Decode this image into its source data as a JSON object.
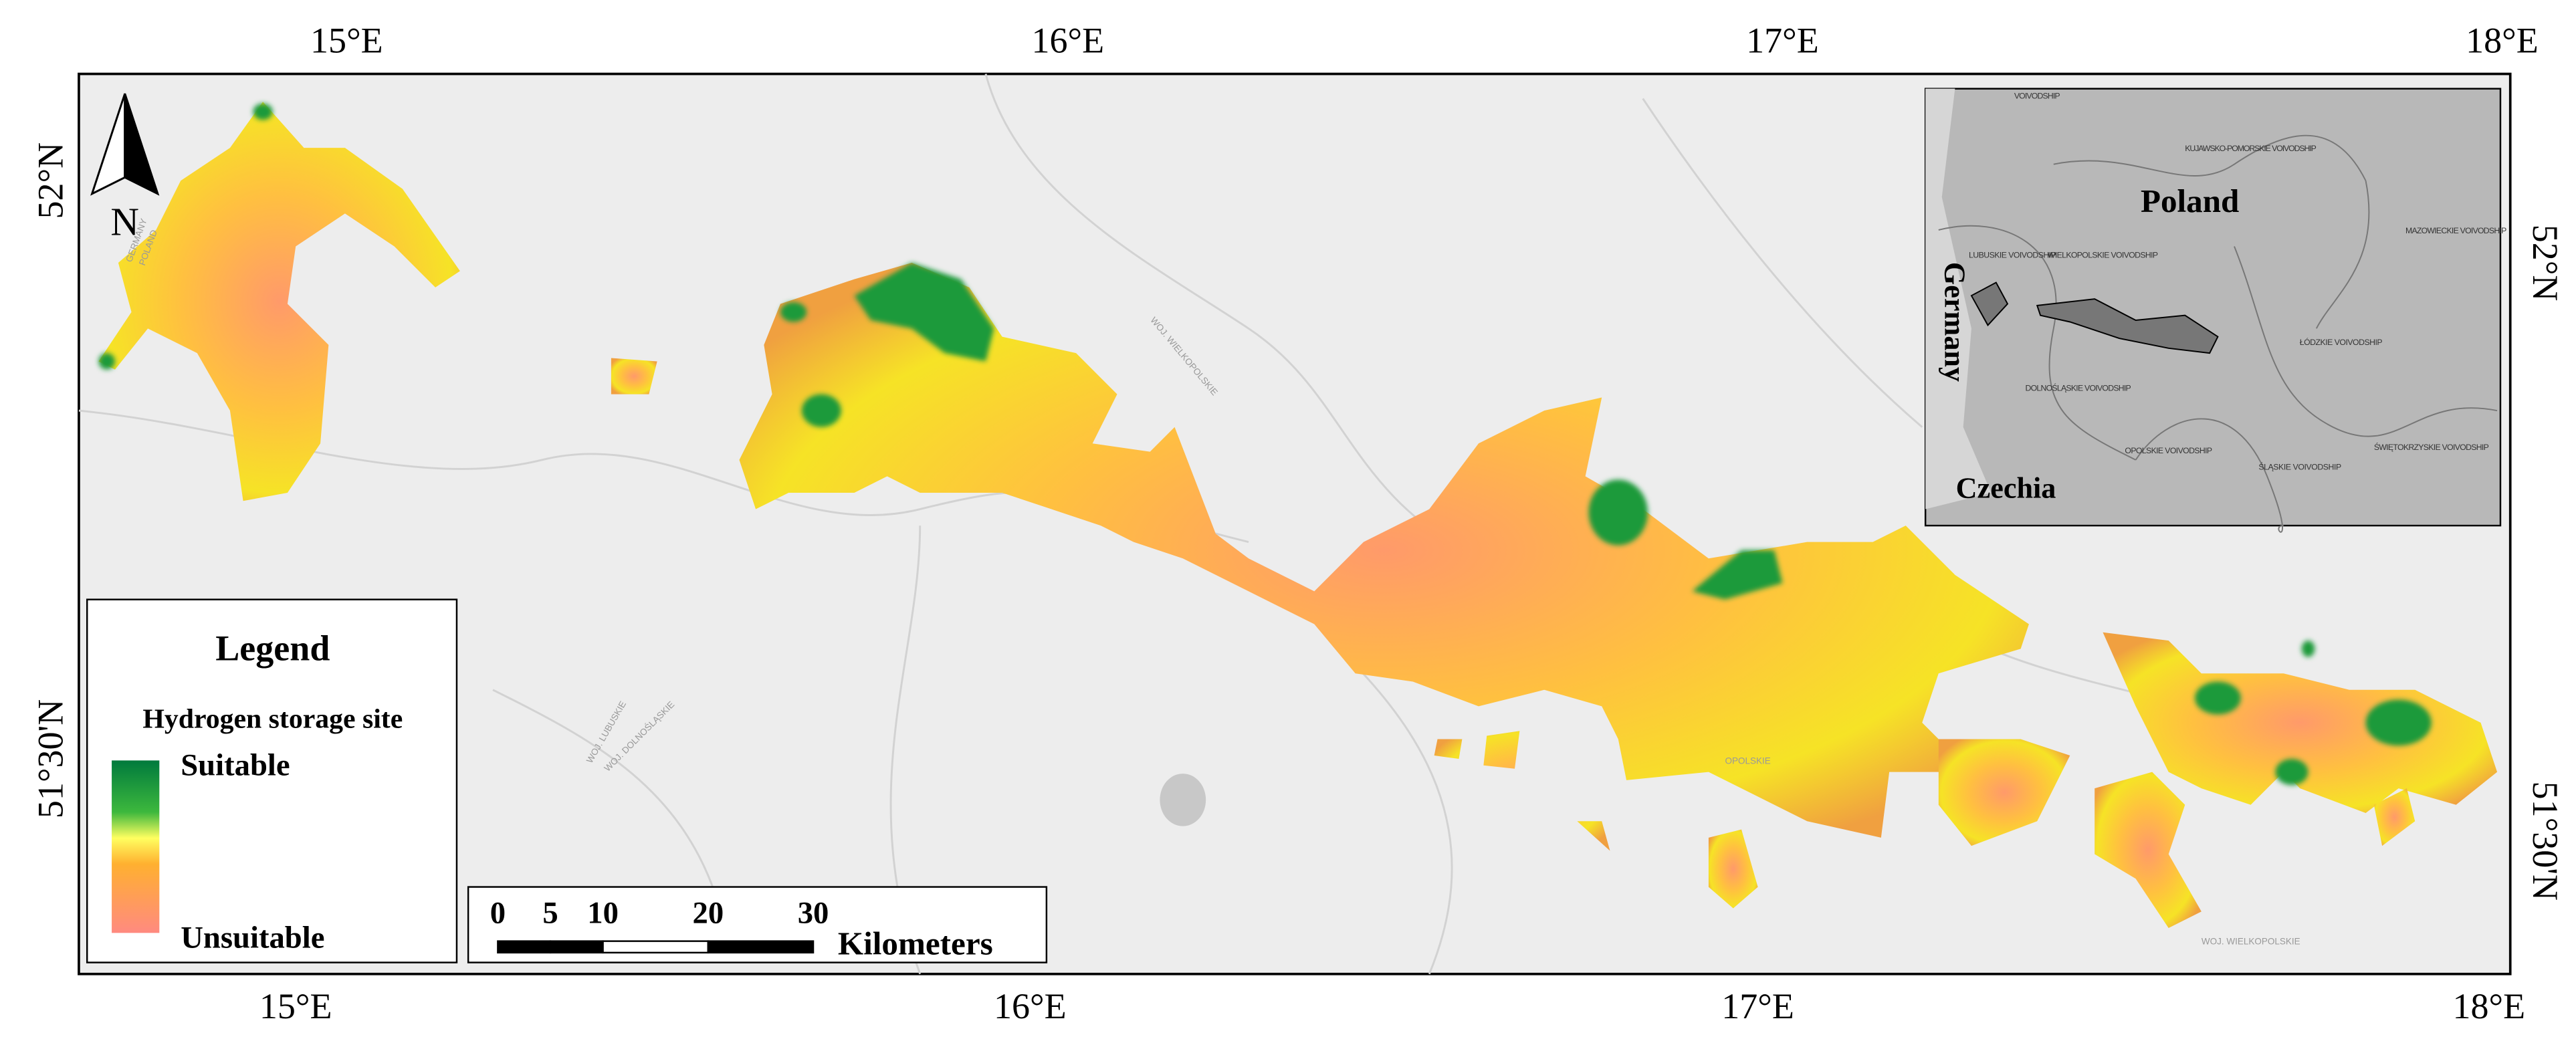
{
  "graticule": {
    "top": [
      "15°E",
      "16°E",
      "17°E",
      "18°E"
    ],
    "bottom": [
      "15°E",
      "16°E",
      "17°E",
      "18°E"
    ],
    "left": [
      "52°N",
      "51°30'N"
    ],
    "right": [
      "52°N",
      "51°30'N"
    ]
  },
  "north_arrow": "N",
  "legend": {
    "title": "Legend",
    "subtitle": "Hydrogen storage site",
    "high": "Suitable",
    "low": "Unsuitable"
  },
  "scale_bar": {
    "ticks": [
      0,
      5,
      10,
      20,
      30
    ],
    "unit": "Kilometers"
  },
  "basemap_labels": [
    "GERMANY",
    "POLAND",
    "WOJ. WIELKOPOLSKIE",
    "WOJ. LUBUSKIE",
    "WOJ. DOLNOŚLĄSKIE",
    "OPOLSKIE",
    "WOJ. WIELKOPOLSKIE"
  ],
  "inset": {
    "country": "Poland",
    "west": "Germany",
    "south": "Czechia",
    "regions": [
      "VOIVODSHIP",
      "KUJAWSKO-POMORSKIE VOIVODSHIP",
      "LUBUSKIE VOIVODSHIP",
      "WIELKOPOLSKIE VOIVODSHIP",
      "MAZOWIECKIE VOIVODSHIP",
      "ŁÓDZKIE VOIVODSHIP",
      "DOLNOŚLĄSKIE VOIVODSHIP",
      "OPOLSKIE VOIVODSHIP",
      "ŚLĄSKIE VOIVODSHIP",
      "ŚWIĘTOKRZYSKIE VOIVODSHIP"
    ]
  }
}
